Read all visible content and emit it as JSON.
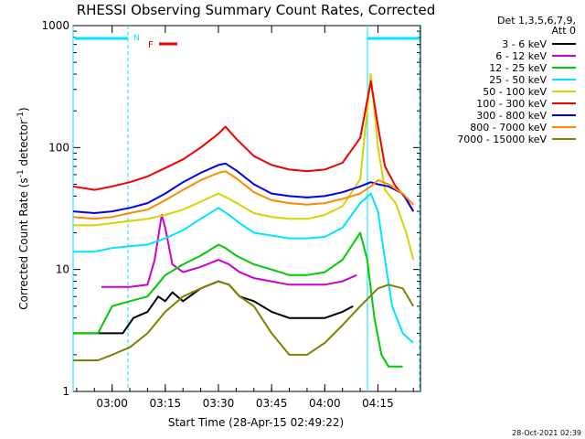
{
  "chart_data": {
    "type": "line",
    "title": "RHESSI Observing Summary Count Rates, Corrected",
    "xlabel": "Start Time (28-Apr-15 02:49:22)",
    "ylabel": "Corrected Count Rate (s^-1 detector^-1)",
    "ylabel_main": "Corrected Count Rate (s",
    "ylabel_sup1": "-1",
    "ylabel_mid": " detector",
    "ylabel_sup2": "-1",
    "ylabel_end": ")",
    "yscale": "log",
    "ylim": [
      1,
      1000
    ],
    "xlim": [
      "02:49:22",
      "04:27:00"
    ],
    "x_ticks": [
      "03:00",
      "03:15",
      "03:30",
      "03:45",
      "04:00",
      "04:15"
    ],
    "y_ticks": [
      "1",
      "10",
      "100",
      "1000"
    ],
    "timestamp": "28-Oct-2021 02:39",
    "legend_header": [
      "Det 1,3,5,6,7,9,",
      "Att 0"
    ],
    "flags": {
      "night": "N",
      "flare": "F"
    },
    "series": [
      {
        "name": "3 - 6 keV",
        "color": "#000000",
        "points": [
          [
            "02:49",
            3.0
          ],
          [
            "02:55",
            3.0
          ],
          [
            "03:00",
            3.0
          ],
          [
            "03:03",
            3.0
          ],
          [
            "03:06",
            4.0
          ],
          [
            "03:10",
            4.5
          ],
          [
            "03:13",
            6
          ],
          [
            "03:15",
            5.5
          ],
          [
            "03:17",
            6.5
          ],
          [
            "03:20",
            5.5
          ],
          [
            "03:25",
            7
          ],
          [
            "03:30",
            8
          ],
          [
            "03:33",
            7.5
          ],
          [
            "03:36",
            6
          ],
          [
            "03:40",
            5.5
          ],
          [
            "03:45",
            4.5
          ],
          [
            "03:50",
            4
          ],
          [
            "03:55",
            4
          ],
          [
            "04:00",
            4
          ],
          [
            "04:05",
            4.5
          ],
          [
            "04:08",
            5
          ]
        ]
      },
      {
        "name": "6 - 12 keV",
        "color": "#cc00cc",
        "points": [
          [
            "02:57",
            7.2
          ],
          [
            "03:00",
            7.2
          ],
          [
            "03:05",
            7.2
          ],
          [
            "03:10",
            7.5
          ],
          [
            "03:12",
            12
          ],
          [
            "03:14",
            28
          ],
          [
            "03:15",
            22
          ],
          [
            "03:17",
            11
          ],
          [
            "03:20",
            9.5
          ],
          [
            "03:25",
            10.5
          ],
          [
            "03:30",
            12
          ],
          [
            "03:33",
            11
          ],
          [
            "03:36",
            9.5
          ],
          [
            "03:40",
            8.5
          ],
          [
            "03:45",
            8
          ],
          [
            "03:50",
            7.5
          ],
          [
            "03:55",
            7.5
          ],
          [
            "04:00",
            7.5
          ],
          [
            "04:05",
            8
          ],
          [
            "04:09",
            9
          ]
        ]
      },
      {
        "name": "12 - 25 keV",
        "color": "#00cc00",
        "points": [
          [
            "02:49",
            3.0
          ],
          [
            "02:56",
            3.0
          ],
          [
            "03:00",
            5
          ],
          [
            "03:05",
            5.5
          ],
          [
            "03:10",
            6
          ],
          [
            "03:15",
            9
          ],
          [
            "03:20",
            11
          ],
          [
            "03:25",
            13
          ],
          [
            "03:30",
            16
          ],
          [
            "03:32",
            15
          ],
          [
            "03:35",
            13
          ],
          [
            "03:40",
            11
          ],
          [
            "03:45",
            10
          ],
          [
            "03:50",
            9
          ],
          [
            "03:55",
            9
          ],
          [
            "04:00",
            9.5
          ],
          [
            "04:05",
            12
          ],
          [
            "04:10",
            20
          ],
          [
            "04:12",
            12
          ],
          [
            "04:14",
            4
          ],
          [
            "04:16",
            2
          ],
          [
            "04:18",
            1.6
          ],
          [
            "04:22",
            1.6
          ]
        ]
      },
      {
        "name": "25 - 50 keV",
        "color": "#00e5ff",
        "points": [
          [
            "02:49",
            14
          ],
          [
            "02:55",
            14
          ],
          [
            "03:00",
            15
          ],
          [
            "03:05",
            15.5
          ],
          [
            "03:10",
            16
          ],
          [
            "03:15",
            18
          ],
          [
            "03:20",
            21
          ],
          [
            "03:25",
            26
          ],
          [
            "03:30",
            32
          ],
          [
            "03:33",
            28
          ],
          [
            "03:36",
            24
          ],
          [
            "03:40",
            20
          ],
          [
            "03:45",
            19
          ],
          [
            "03:50",
            18
          ],
          [
            "03:55",
            18
          ],
          [
            "04:00",
            18.5
          ],
          [
            "04:05",
            22
          ],
          [
            "04:10",
            35
          ],
          [
            "04:13",
            42
          ],
          [
            "04:15",
            30
          ],
          [
            "04:17",
            12
          ],
          [
            "04:19",
            5
          ],
          [
            "04:22",
            3
          ],
          [
            "04:25",
            2.5
          ]
        ]
      },
      {
        "name": "50 - 100 keV",
        "color": "#d4d400",
        "points": [
          [
            "02:49",
            23
          ],
          [
            "02:55",
            23
          ],
          [
            "03:00",
            24
          ],
          [
            "03:05",
            25
          ],
          [
            "03:10",
            26
          ],
          [
            "03:15",
            28
          ],
          [
            "03:20",
            31
          ],
          [
            "03:25",
            36
          ],
          [
            "03:30",
            42
          ],
          [
            "03:33",
            38
          ],
          [
            "03:36",
            34
          ],
          [
            "03:40",
            29
          ],
          [
            "03:45",
            27
          ],
          [
            "03:50",
            26
          ],
          [
            "03:55",
            26
          ],
          [
            "04:00",
            28
          ],
          [
            "04:05",
            33
          ],
          [
            "04:10",
            55
          ],
          [
            "04:13",
            400
          ],
          [
            "04:15",
            100
          ],
          [
            "04:17",
            45
          ],
          [
            "04:20",
            35
          ],
          [
            "04:23",
            20
          ],
          [
            "04:25",
            12
          ]
        ]
      },
      {
        "name": "100 - 300 keV",
        "color": "#ee0000",
        "points": [
          [
            "02:49",
            48
          ],
          [
            "02:55",
            45
          ],
          [
            "03:00",
            48
          ],
          [
            "03:05",
            52
          ],
          [
            "03:10",
            58
          ],
          [
            "03:15",
            68
          ],
          [
            "03:20",
            80
          ],
          [
            "03:25",
            100
          ],
          [
            "03:30",
            130
          ],
          [
            "03:32",
            148
          ],
          [
            "03:35",
            118
          ],
          [
            "03:40",
            85
          ],
          [
            "03:45",
            72
          ],
          [
            "03:50",
            66
          ],
          [
            "03:55",
            64
          ],
          [
            "04:00",
            66
          ],
          [
            "04:05",
            75
          ],
          [
            "04:10",
            120
          ],
          [
            "04:13",
            350
          ],
          [
            "04:15",
            150
          ],
          [
            "04:17",
            70
          ],
          [
            "04:20",
            48
          ],
          [
            "04:23",
            38
          ],
          [
            "04:25",
            30
          ]
        ]
      },
      {
        "name": "300 - 800 keV",
        "color": "#0000ee",
        "points": [
          [
            "02:49",
            30
          ],
          [
            "02:55",
            29
          ],
          [
            "03:00",
            30
          ],
          [
            "03:05",
            32
          ],
          [
            "03:10",
            35
          ],
          [
            "03:15",
            42
          ],
          [
            "03:20",
            52
          ],
          [
            "03:25",
            62
          ],
          [
            "03:30",
            72
          ],
          [
            "03:32",
            74
          ],
          [
            "03:35",
            65
          ],
          [
            "03:40",
            50
          ],
          [
            "03:45",
            42
          ],
          [
            "03:50",
            40
          ],
          [
            "03:55",
            39
          ],
          [
            "04:00",
            40
          ],
          [
            "04:05",
            43
          ],
          [
            "04:10",
            48
          ],
          [
            "04:13",
            52
          ],
          [
            "04:15",
            50
          ],
          [
            "04:18",
            48
          ],
          [
            "04:22",
            42
          ],
          [
            "04:25",
            30
          ]
        ]
      },
      {
        "name": "800 - 7000 keV",
        "color": "#ff8800",
        "points": [
          [
            "02:49",
            27
          ],
          [
            "02:55",
            26
          ],
          [
            "03:00",
            27
          ],
          [
            "03:05",
            29
          ],
          [
            "03:10",
            31
          ],
          [
            "03:15",
            37
          ],
          [
            "03:20",
            45
          ],
          [
            "03:25",
            54
          ],
          [
            "03:30",
            62
          ],
          [
            "03:32",
            64
          ],
          [
            "03:35",
            56
          ],
          [
            "03:40",
            43
          ],
          [
            "03:45",
            37
          ],
          [
            "03:50",
            35
          ],
          [
            "03:55",
            34
          ],
          [
            "04:00",
            35
          ],
          [
            "04:05",
            38
          ],
          [
            "04:10",
            42
          ],
          [
            "04:13",
            48
          ],
          [
            "04:15",
            54
          ],
          [
            "04:18",
            50
          ],
          [
            "04:22",
            42
          ],
          [
            "04:25",
            34
          ]
        ]
      },
      {
        "name": "7000 - 15000 keV",
        "color": "#808000",
        "points": [
          [
            "02:49",
            1.8
          ],
          [
            "02:56",
            1.8
          ],
          [
            "03:00",
            2.0
          ],
          [
            "03:05",
            2.3
          ],
          [
            "03:10",
            3
          ],
          [
            "03:15",
            4.5
          ],
          [
            "03:20",
            6
          ],
          [
            "03:25",
            7
          ],
          [
            "03:30",
            8
          ],
          [
            "03:33",
            7.5
          ],
          [
            "03:36",
            6
          ],
          [
            "03:40",
            5
          ],
          [
            "03:45",
            3
          ],
          [
            "03:50",
            2
          ],
          [
            "03:55",
            2
          ],
          [
            "04:00",
            2.5
          ],
          [
            "04:05",
            3.5
          ],
          [
            "04:10",
            5
          ],
          [
            "04:15",
            7
          ],
          [
            "04:18",
            7.5
          ],
          [
            "04:22",
            7
          ],
          [
            "04:25",
            5
          ]
        ]
      }
    ]
  }
}
